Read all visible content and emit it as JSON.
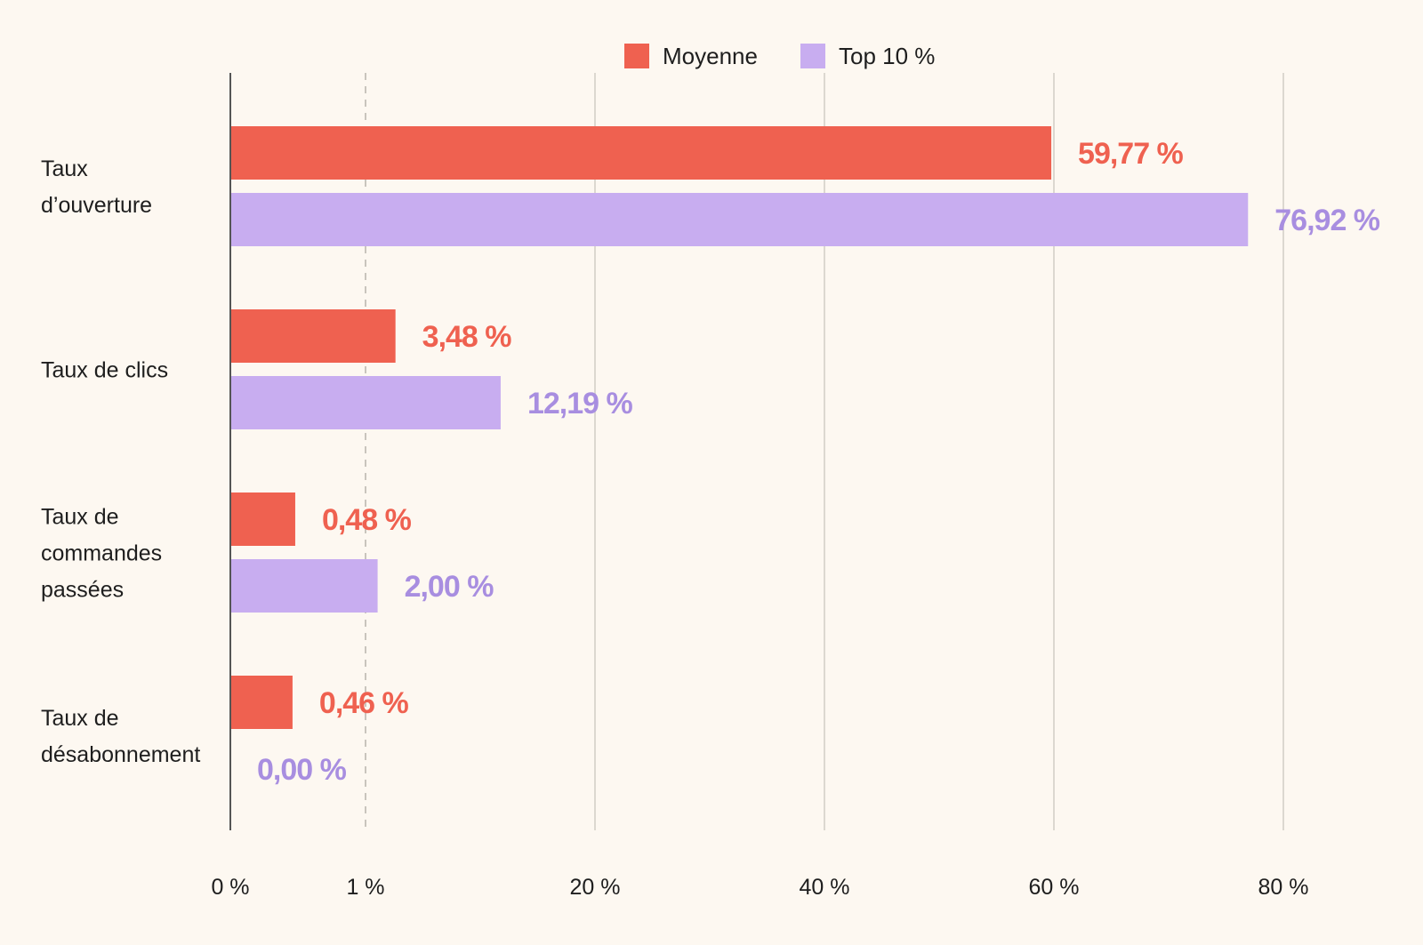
{
  "colors": {
    "background": "#fdf8f1",
    "moyenne": "#ef6150",
    "top10": "#c8adf0",
    "moyenne_text": "#ef6150",
    "top10_text": "#a88ee0",
    "grid": "#dcd8d0",
    "axis": "#555555",
    "text": "#1e1e1e"
  },
  "chart_data": {
    "type": "bar",
    "orientation": "horizontal",
    "categories": [
      [
        "Taux",
        "d’ouverture"
      ],
      [
        "Taux de clics"
      ],
      [
        "Taux de",
        "commandes",
        "passées"
      ],
      [
        "Taux de",
        "désabonnement"
      ]
    ],
    "series": [
      {
        "name": "Moyenne",
        "color": "#ef6150",
        "values": [
          59.77,
          3.48,
          0.48,
          0.46
        ],
        "labels": [
          "59,77 %",
          "3,48 %",
          "0,48 %",
          "0,46 %"
        ]
      },
      {
        "name": "Top 10 %",
        "color": "#c8adf0",
        "values": [
          76.92,
          12.19,
          2.0,
          0.0
        ],
        "labels": [
          "76,92 %",
          "12,19 %",
          "2,00 %",
          "0,00 %"
        ]
      }
    ],
    "scale": "piecewise-linear",
    "ticks": [
      {
        "value": 0,
        "label": "0 %"
      },
      {
        "value": 1,
        "label": "1 %"
      },
      {
        "value": 20,
        "label": "20 %"
      },
      {
        "value": 40,
        "label": "40 %"
      },
      {
        "value": 60,
        "label": "60 %"
      },
      {
        "value": 80,
        "label": "80 %"
      }
    ],
    "dashed_tick": 1,
    "xlim": [
      0,
      80
    ],
    "grid": true,
    "legend_position": "top-center"
  }
}
